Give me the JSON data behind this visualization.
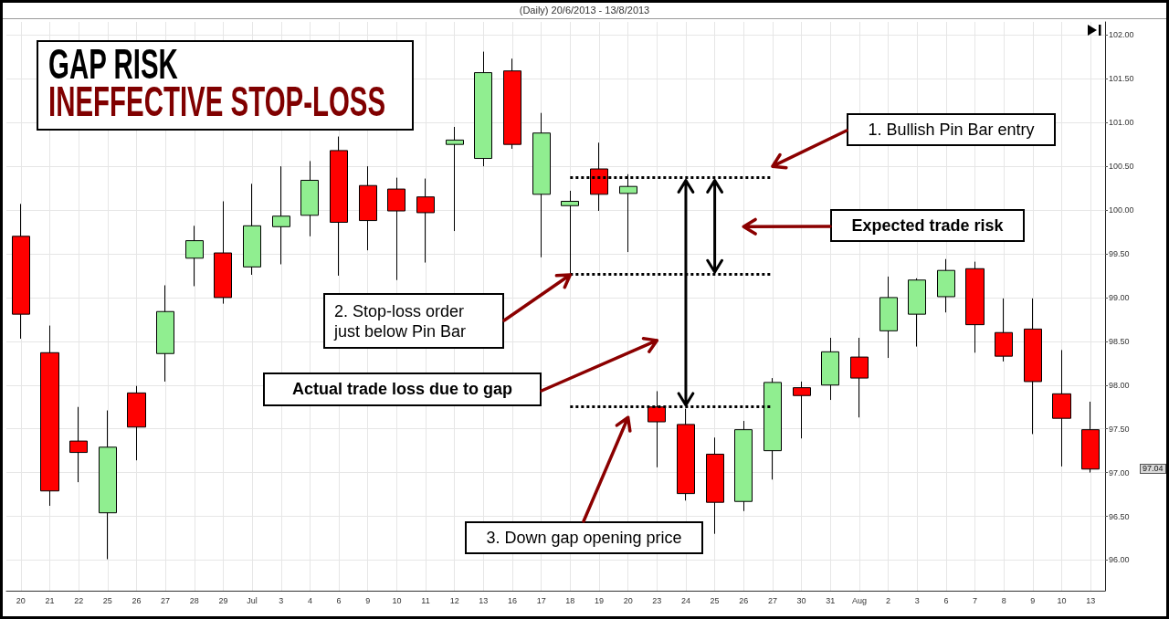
{
  "chart_data": {
    "type": "candlestick",
    "title": "GAP RISK",
    "subtitle": "INEFFECTIVE STOP-LOSS",
    "categories": [
      "20",
      "21",
      "22",
      "25",
      "26",
      "27",
      "28",
      "29",
      "Jul",
      "3",
      "4",
      "6",
      "9",
      "10",
      "11",
      "12",
      "13",
      "16",
      "17",
      "18",
      "19",
      "20",
      "23",
      "24",
      "25",
      "26",
      "27",
      "30",
      "31",
      "Aug",
      "2",
      "3",
      "6",
      "7",
      "8",
      "9",
      "10",
      "13"
    ],
    "ohlc": [
      [
        99.7,
        100.07,
        98.53,
        98.81
      ],
      [
        98.37,
        98.68,
        96.62,
        96.79
      ],
      [
        97.36,
        97.75,
        96.89,
        97.23
      ],
      [
        96.54,
        97.71,
        96.01,
        97.29
      ],
      [
        97.91,
        97.99,
        97.14,
        97.52
      ],
      [
        98.36,
        99.14,
        98.04,
        98.84
      ],
      [
        99.45,
        99.82,
        99.13,
        99.65
      ],
      [
        99.51,
        100.1,
        98.93,
        99.0
      ],
      [
        99.35,
        100.3,
        99.26,
        99.82
      ],
      [
        99.81,
        100.5,
        99.38,
        99.93
      ],
      [
        99.94,
        100.56,
        99.7,
        100.34
      ],
      [
        100.68,
        100.84,
        99.25,
        99.86
      ],
      [
        100.28,
        100.5,
        99.54,
        99.88
      ],
      [
        100.24,
        100.37,
        99.2,
        99.99
      ],
      [
        100.15,
        100.36,
        99.4,
        99.97
      ],
      [
        100.75,
        100.95,
        99.76,
        100.8
      ],
      [
        100.59,
        101.81,
        100.5,
        101.57
      ],
      [
        101.59,
        101.73,
        100.7,
        100.75
      ],
      [
        100.18,
        101.11,
        99.46,
        100.88
      ],
      [
        100.05,
        100.22,
        99.28,
        100.1
      ],
      [
        100.47,
        100.77,
        99.99,
        100.18
      ],
      [
        100.19,
        100.41,
        99.52,
        100.27
      ],
      [
        97.75,
        97.93,
        97.06,
        97.58
      ],
      [
        97.55,
        97.73,
        96.68,
        96.76
      ],
      [
        97.21,
        97.4,
        96.3,
        96.66
      ],
      [
        96.67,
        97.59,
        96.56,
        97.49
      ],
      [
        97.25,
        98.08,
        96.92,
        98.03
      ],
      [
        97.97,
        98.04,
        97.39,
        97.88
      ],
      [
        98.0,
        98.54,
        97.83,
        98.38
      ],
      [
        98.32,
        98.54,
        97.63,
        98.08
      ],
      [
        98.62,
        99.24,
        98.31,
        99.0
      ],
      [
        98.81,
        99.22,
        98.44,
        99.2
      ],
      [
        99.01,
        99.44,
        98.83,
        99.31
      ],
      [
        99.33,
        99.41,
        98.37,
        98.69
      ],
      [
        98.6,
        98.99,
        98.27,
        98.33
      ],
      [
        98.64,
        98.99,
        97.44,
        98.04
      ],
      [
        97.9,
        98.4,
        97.07,
        97.62
      ],
      [
        97.49,
        97.81,
        97.0,
        97.04
      ]
    ],
    "colors": [
      "#ff0000",
      "#ff0000",
      "#ff0000",
      "#90ee90",
      "#ff0000",
      "#90ee90",
      "#90ee90",
      "#ff0000",
      "#90ee90",
      "#90ee90",
      "#90ee90",
      "#ff0000",
      "#ff0000",
      "#ff0000",
      "#ff0000",
      "#90ee90",
      "#90ee90",
      "#ff0000",
      "#90ee90",
      "#90ee90",
      "#ff0000",
      "#90ee90",
      "#ff0000",
      "#ff0000",
      "#ff0000",
      "#90ee90",
      "#90ee90",
      "#ff0000",
      "#90ee90",
      "#ff0000",
      "#90ee90",
      "#90ee90",
      "#90ee90",
      "#ff0000",
      "#ff0000",
      "#ff0000",
      "#ff0000",
      "#ff0000"
    ],
    "ylim": [
      95.65,
      102.15
    ],
    "yticks": [
      {
        "value": 96,
        "label": "96.00"
      },
      {
        "value": 96.5,
        "label": "96.50"
      },
      {
        "value": 97,
        "label": "97.00"
      },
      {
        "value": 97.5,
        "label": "97.50"
      },
      {
        "value": 98,
        "label": "98.00"
      },
      {
        "value": 98.5,
        "label": "98.50"
      },
      {
        "value": 99,
        "label": "99.00"
      },
      {
        "value": 99.5,
        "label": "99.50"
      },
      {
        "value": 100,
        "label": "100.00"
      },
      {
        "value": 100.5,
        "label": "100.50"
      },
      {
        "value": 101,
        "label": "101.00"
      },
      {
        "value": 101.5,
        "label": "101.50"
      },
      {
        "value": 102,
        "label": "102.00"
      }
    ],
    "grid": true,
    "ref_lines": [
      {
        "axis": "y",
        "value": 100.37,
        "color": "#000000",
        "line_style": "dotted"
      },
      {
        "axis": "y",
        "value": 99.27,
        "color": "#000000",
        "line_style": "dotted"
      },
      {
        "axis": "y",
        "value": 97.75,
        "color": "#000000",
        "line_style": "dotted"
      }
    ],
    "annotations": [
      "(Daily) 20/6/2013 - 13/8/2013",
      "1. Bullish Pin Bar entry",
      "Expected trade risk",
      "2. Stop-loss order just below Pin Bar",
      "Actual trade loss due to gap",
      "3. Down gap opening price",
      "97.04"
    ]
  }
}
